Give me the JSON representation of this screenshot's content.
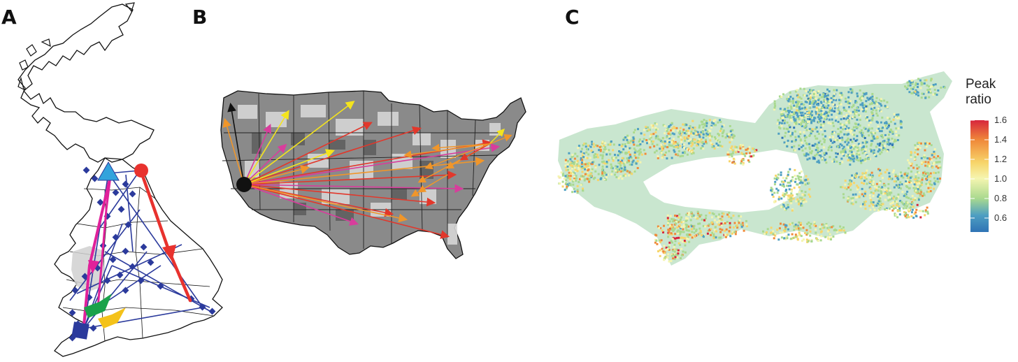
{
  "panels": {
    "a": {
      "letter": "A"
    },
    "b": {
      "letter": "B"
    },
    "c": {
      "letter": "C"
    }
  },
  "legend": {
    "title_line1": "Peak",
    "title_line2": "ratio",
    "ticks": [
      "1.6",
      "1.4",
      "1.2",
      "1.0",
      "0.8",
      "0.6"
    ],
    "range": [
      0.5,
      1.6
    ],
    "colors": [
      "#d7263d",
      "#f08a3a",
      "#f7d56a",
      "#f5f5b0",
      "#a9d98f",
      "#4e9fc2",
      "#2f73b5"
    ]
  },
  "colors": {
    "uk_blue": "#2b3a9c",
    "uk_magenta": "#e0219a",
    "uk_red": "#e8322e",
    "uk_cyan": "#33a3dc",
    "uk_green": "#1aa24a",
    "uk_yellow": "#f4c21a",
    "us_red": "#e2372b",
    "us_orange": "#f0962a",
    "us_yellow": "#f4e41c",
    "us_magenta": "#d83d9c"
  }
}
